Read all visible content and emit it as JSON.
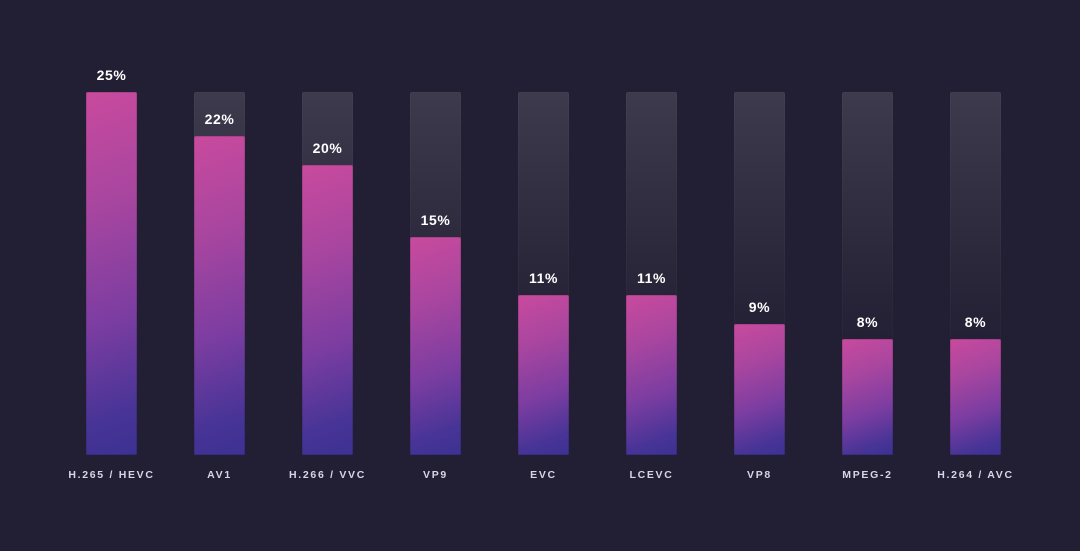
{
  "chart_data": {
    "type": "bar",
    "title": "",
    "xlabel": "",
    "ylabel": "",
    "categories": [
      "H.265 / HEVC",
      "AV1",
      "H.266 / VVC",
      "VP9",
      "EVC",
      "LCEVC",
      "VP8",
      "MPEG-2",
      "H.264 / AVC"
    ],
    "values": [
      25,
      22,
      20,
      15,
      11,
      11,
      9,
      8,
      8
    ],
    "value_labels": [
      "25%",
      "22%",
      "20%",
      "15%",
      "11%",
      "11%",
      "9%",
      "8%",
      "8%"
    ],
    "ylim": [
      0,
      25
    ],
    "track_max": 25,
    "grid": false,
    "legend": false,
    "orientation": "vertical"
  },
  "colors": {
    "background": "#221e33",
    "bar_gradient_top": "#c84a9e",
    "bar_gradient_bottom": "#3c3193",
    "track_top": "#413e54",
    "value_label": "#ffffff",
    "category_label": "#d8d5e6"
  }
}
